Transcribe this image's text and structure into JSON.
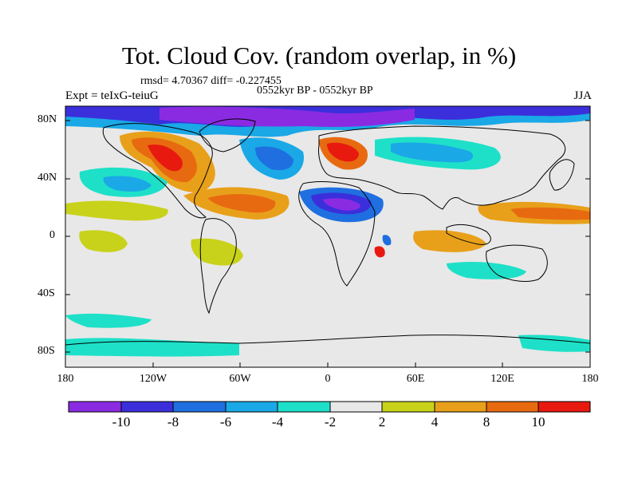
{
  "header": {
    "title": "Tot. Cloud Cov. (random overlap, in %)",
    "stats": "rmsd= 4.70367 diff= -0.227455",
    "period": "0552kyr BP - 0552kyr BP",
    "experiment": "Expt = teIxG-teiuG",
    "season": "JJA"
  },
  "axes": {
    "y_ticks": [
      "80N",
      "40N",
      "0",
      "40S",
      "80S"
    ],
    "x_ticks": [
      "180",
      "120W",
      "60W",
      "0",
      "60E",
      "120E",
      "180"
    ]
  },
  "colorbar": {
    "labels": [
      "-10",
      "-8",
      "-6",
      "-4",
      "-2",
      "2",
      "4",
      "8",
      "10"
    ],
    "colors": [
      "#8a2be2",
      "#3b2fdc",
      "#1f6fe0",
      "#1aa8e6",
      "#1ee0c8",
      "#e8e8e8",
      "#c8d21a",
      "#e8a01a",
      "#e86a10",
      "#e81a10"
    ]
  },
  "map": {
    "projection": "cylindrical equidistant",
    "lon_range": [
      -180,
      180
    ],
    "lat_range": [
      -90,
      90
    ],
    "background_color": "#e8e8e8"
  }
}
